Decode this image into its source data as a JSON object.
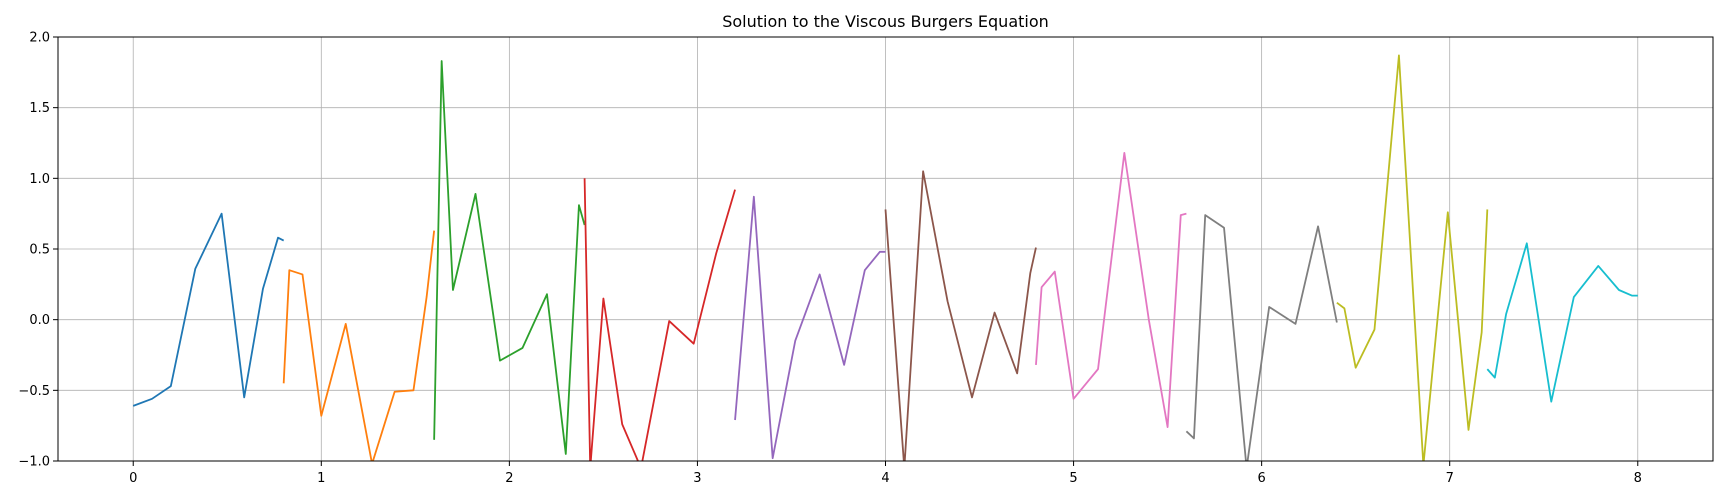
{
  "chart_data": {
    "type": "line",
    "title": "Solution to the Viscous Burgers Equation",
    "xlabel": "",
    "ylabel": "",
    "xlim": [
      -0.4,
      8.4
    ],
    "ylim": [
      -1.0,
      2.0
    ],
    "xticks": [
      0,
      1,
      2,
      3,
      4,
      5,
      6,
      7,
      8
    ],
    "xtick_labels": [
      "0",
      "1",
      "2",
      "3",
      "4",
      "5",
      "6",
      "7",
      "8"
    ],
    "yticks": [
      -1.0,
      -0.5,
      0.0,
      0.5,
      1.0,
      1.5,
      2.0
    ],
    "ytick_labels": [
      "−1.0",
      "−0.5",
      "0.0",
      "0.5",
      "1.0",
      "1.5",
      "2.0"
    ],
    "grid": true,
    "legend": "none",
    "series": [
      {
        "color": "#1f77b4",
        "x": [
          0,
          0.1,
          0.2,
          0.33,
          0.47,
          0.59,
          0.69,
          0.77,
          0.8
        ],
        "y": [
          -0.61,
          -0.56,
          -0.47,
          0.36,
          0.75,
          -0.55,
          0.22,
          0.58,
          0.56
        ]
      },
      {
        "color": "#ff7f0e",
        "x": [
          0.8,
          0.83,
          0.9,
          1.0,
          1.13,
          1.27,
          1.39,
          1.49,
          1.56,
          1.6
        ],
        "y": [
          -0.45,
          0.35,
          0.32,
          -0.68,
          -0.03,
          -1.02,
          -0.51,
          -0.5,
          0.16,
          0.63
        ]
      },
      {
        "color": "#2ca02c",
        "x": [
          1.6,
          1.64,
          1.7,
          1.82,
          1.95,
          2.07,
          2.2,
          2.3,
          2.37,
          2.4
        ],
        "y": [
          -0.85,
          1.83,
          0.21,
          0.89,
          -0.29,
          -0.2,
          0.18,
          -0.95,
          0.81,
          0.67
        ]
      },
      {
        "color": "#d62728",
        "x": [
          2.4,
          2.43,
          2.5,
          2.6,
          2.7,
          2.85,
          2.98,
          3.1,
          3.2
        ],
        "y": [
          1.0,
          -1.05,
          0.15,
          -0.74,
          -1.05,
          -0.01,
          -0.17,
          0.47,
          0.92
        ]
      },
      {
        "color": "#9467bd",
        "x": [
          3.2,
          3.3,
          3.4,
          3.52,
          3.65,
          3.78,
          3.89,
          3.97,
          4.0
        ],
        "y": [
          -0.71,
          0.87,
          -0.98,
          -0.15,
          0.32,
          -0.32,
          0.35,
          0.48,
          0.48
        ]
      },
      {
        "color": "#8c564b",
        "x": [
          4.0,
          4.1,
          4.2,
          4.33,
          4.46,
          4.58,
          4.7,
          4.77,
          4.8
        ],
        "y": [
          0.78,
          -1.05,
          1.05,
          0.13,
          -0.55,
          0.05,
          -0.38,
          0.33,
          0.51
        ]
      },
      {
        "color": "#e377c2",
        "x": [
          4.8,
          4.83,
          4.9,
          5.0,
          5.13,
          5.27,
          5.4,
          5.5,
          5.57,
          5.6
        ],
        "y": [
          -0.32,
          0.23,
          0.34,
          -0.56,
          -0.35,
          1.18,
          0.0,
          -0.76,
          0.74,
          0.75
        ]
      },
      {
        "color": "#7f7f7f",
        "x": [
          5.6,
          5.64,
          5.7,
          5.8,
          5.92,
          6.04,
          6.18,
          6.3,
          6.4
        ],
        "y": [
          -0.79,
          -0.84,
          0.74,
          0.65,
          -1.05,
          0.09,
          -0.03,
          0.66,
          -0.02
        ]
      },
      {
        "color": "#bcbd22",
        "x": [
          6.4,
          6.44,
          6.5,
          6.6,
          6.73,
          6.86,
          6.99,
          7.1,
          7.17,
          7.2
        ],
        "y": [
          0.12,
          0.08,
          -0.34,
          -0.07,
          1.87,
          -1.03,
          0.76,
          -0.78,
          -0.09,
          0.78
        ]
      },
      {
        "color": "#17becf",
        "x": [
          7.2,
          7.24,
          7.3,
          7.41,
          7.54,
          7.66,
          7.79,
          7.9,
          7.97,
          8.0
        ],
        "y": [
          -0.35,
          -0.41,
          0.04,
          0.54,
          -0.58,
          0.16,
          0.38,
          0.21,
          0.17,
          0.17
        ]
      }
    ]
  }
}
